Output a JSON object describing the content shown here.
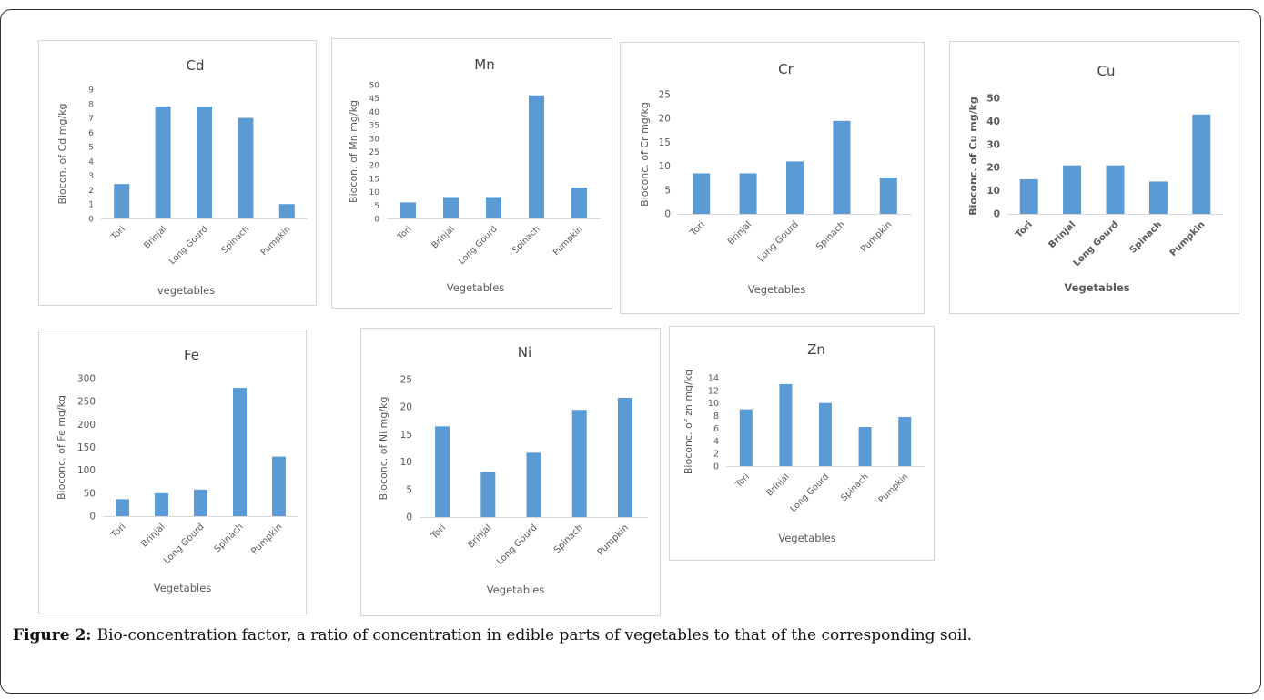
{
  "caption": {
    "label": "Figure 2:",
    "text": "Bio-concentration factor, a ratio of concentration in edible parts of vegetables to that of the corresponding soil."
  },
  "colors": {
    "bar": "#5b9bd5",
    "axis": "#d9d9d9",
    "text": "#595959",
    "title": "#404040"
  },
  "chart_data": [
    {
      "type": "bar",
      "title": "Cd",
      "xlabel": "vegetables",
      "ylabel": "Biocon. of Cd mg/kg",
      "categories": [
        "Tori",
        "Brinjal",
        "Long Gourd",
        "Spinach",
        "Pumpkin"
      ],
      "values": [
        2.4,
        7.8,
        7.8,
        7.0,
        1.0
      ],
      "ylim": [
        0,
        9
      ],
      "yticks": [
        "0",
        "1",
        "2",
        "3",
        "4",
        "5",
        "6",
        "7",
        "8",
        "9"
      ],
      "grid": false
    },
    {
      "type": "bar",
      "title": "Mn",
      "xlabel": "Vegetables",
      "ylabel": "Biocon. of Mn mg/kg",
      "categories": [
        "Tori",
        "Brinjal",
        "Long Gourd",
        "Spinach",
        "Pumpkin"
      ],
      "values": [
        6,
        8,
        8,
        46,
        11.5
      ],
      "ylim": [
        0,
        50
      ],
      "yticks": [
        "0",
        "5",
        "10",
        "15",
        "20",
        "25",
        "30",
        "35",
        "40",
        "45",
        "50"
      ],
      "grid": false
    },
    {
      "type": "bar",
      "title": "Cr",
      "xlabel": "Vegetables",
      "ylabel": "Bioconc. of Cr mg/kg",
      "categories": [
        "Tori",
        "Brinjal",
        "Long Gourd",
        "Spinach",
        "Pumpkin"
      ],
      "values": [
        8.5,
        8.5,
        11,
        19.5,
        7.6
      ],
      "ylim": [
        0,
        25
      ],
      "yticks": [
        "0",
        "5",
        "10",
        "15",
        "20",
        "25"
      ],
      "grid": false
    },
    {
      "type": "bar",
      "title": "Cu",
      "xlabel": "Vegetables",
      "ylabel": "Bioconc. of Cu mg/kg",
      "categories": [
        "Tori",
        "Brinjal",
        "Long Gourd",
        "Spinach",
        "Pumpkin"
      ],
      "values": [
        15,
        21,
        21,
        14,
        43
      ],
      "ylim": [
        0,
        50
      ],
      "yticks": [
        "0",
        "10",
        "20",
        "30",
        "40",
        "50"
      ],
      "grid": false,
      "bold_labels": true
    },
    {
      "type": "bar",
      "title": "Fe",
      "xlabel": "Vegetables",
      "ylabel": "Bioconc. of Fe mg/kg",
      "categories": [
        "Tori",
        "Brinjal",
        "Long Gourd",
        "Spinach",
        "Pumpkin"
      ],
      "values": [
        37,
        50,
        58,
        280,
        130
      ],
      "ylim": [
        0,
        300
      ],
      "yticks": [
        "0",
        "50",
        "100",
        "150",
        "200",
        "250",
        "300"
      ],
      "grid": false
    },
    {
      "type": "bar",
      "title": "Ni",
      "xlabel": "Vegetables",
      "ylabel": "Bioconc. of Ni mg/kg",
      "categories": [
        "Tori",
        "Brinjal",
        "Long Gourd",
        "Spinach",
        "Pumpkin"
      ],
      "values": [
        16.5,
        8.2,
        11.7,
        19.5,
        21.7
      ],
      "ylim": [
        0,
        25
      ],
      "yticks": [
        "0",
        "5",
        "10",
        "15",
        "20",
        "25"
      ],
      "grid": false
    },
    {
      "type": "bar",
      "title": "Zn",
      "xlabel": "Vegetables",
      "ylabel": "Bioconc. of zn mg/kg",
      "categories": [
        "Tori",
        "Brinjal",
        "Long Gourd",
        "Spinach",
        "Pumpkin"
      ],
      "values": [
        9,
        13,
        10,
        6.2,
        7.8
      ],
      "ylim": [
        0,
        14
      ],
      "yticks": [
        "0",
        "2",
        "4",
        "6",
        "8",
        "10",
        "12",
        "14"
      ],
      "grid": false
    }
  ]
}
